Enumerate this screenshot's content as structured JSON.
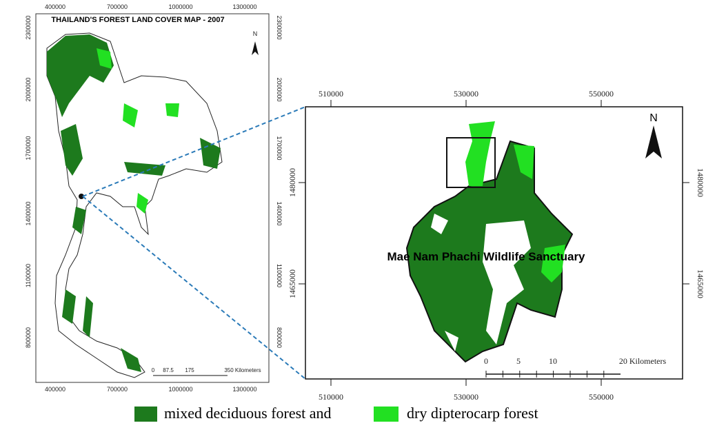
{
  "left_map": {
    "title": "THAILAND'S FOREST LAND COVER MAP - 2007",
    "north": "N",
    "x_ticks": [
      400000,
      700000,
      1000000,
      1300000
    ],
    "y_ticks": [
      2300000,
      2000000,
      1700000,
      1400000,
      1100000,
      800000
    ],
    "scale_labels": [
      "0",
      "87.5",
      "175",
      "350 Kilometers"
    ]
  },
  "right_map": {
    "label": "Mae Nam Phachi Wildlife Sanctuary",
    "north": "N",
    "x_ticks": [
      510000,
      530000,
      550000
    ],
    "y_ticks": [
      1480000,
      1465000
    ],
    "scale_labels": [
      "0",
      "5",
      "10",
      "20 Kilometers"
    ]
  },
  "legend": [
    {
      "label": "mixed deciduous forest and",
      "color": "#1d7a1d"
    },
    {
      "label": "dry dipterocarp forest",
      "color": "#22e022"
    }
  ]
}
